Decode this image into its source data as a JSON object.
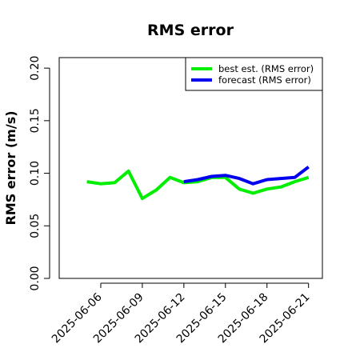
{
  "chart_data": {
    "type": "line",
    "title": "RMS error",
    "xlabel": "",
    "ylabel": "RMS error (m/s)",
    "ylim": [
      0.0,
      0.21
    ],
    "yticks": [
      0.0,
      0.05,
      0.1,
      0.15,
      0.2
    ],
    "ytick_labels": [
      "0.00",
      "0.05",
      "0.10",
      "0.15",
      "0.20"
    ],
    "xticks": [
      "2025-06-06",
      "2025-06-09",
      "2025-06-12",
      "2025-06-15",
      "2025-06-18",
      "2025-06-21"
    ],
    "xtick_colors": [
      "#000000",
      "#000000",
      "#228b22",
      "#000000",
      "#000000",
      "#000000"
    ],
    "x_range": [
      "2025-06-03",
      "2025-06-22"
    ],
    "grid": false,
    "legend_position": "top-right",
    "series": [
      {
        "name": "best est. (RMS error)",
        "color": "#00ee00",
        "points": [
          [
            "2025-06-05",
            0.092
          ],
          [
            "2025-06-06",
            0.09
          ],
          [
            "2025-06-07",
            0.091
          ],
          [
            "2025-06-08",
            0.102
          ],
          [
            "2025-06-09",
            0.076
          ],
          [
            "2025-06-10",
            0.084
          ],
          [
            "2025-06-11",
            0.096
          ],
          [
            "2025-06-12",
            0.091
          ],
          [
            "2025-06-13",
            0.092
          ],
          [
            "2025-06-14",
            0.096
          ],
          [
            "2025-06-15",
            0.096
          ],
          [
            "2025-06-16",
            0.085
          ],
          [
            "2025-06-17",
            0.081
          ],
          [
            "2025-06-18",
            0.085
          ],
          [
            "2025-06-19",
            0.087
          ],
          [
            "2025-06-20",
            0.092
          ],
          [
            "2025-06-21",
            0.096
          ]
        ]
      },
      {
        "name": "forecast (RMS error)",
        "color": "#0000ee",
        "points": [
          [
            "2025-06-12",
            0.092
          ],
          [
            "2025-06-13",
            0.094
          ],
          [
            "2025-06-14",
            0.097
          ],
          [
            "2025-06-15",
            0.098
          ],
          [
            "2025-06-16",
            0.095
          ],
          [
            "2025-06-17",
            0.09
          ],
          [
            "2025-06-18",
            0.094
          ],
          [
            "2025-06-19",
            0.095
          ],
          [
            "2025-06-20",
            0.096
          ],
          [
            "2025-06-21",
            0.106
          ]
        ]
      }
    ]
  }
}
